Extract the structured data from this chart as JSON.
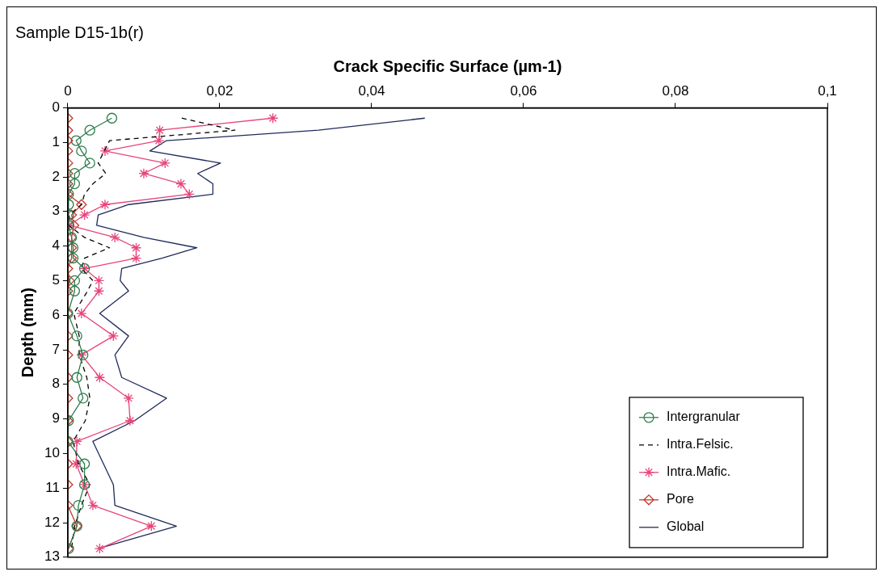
{
  "chart_data": {
    "type": "line",
    "title": "Sample D15-1b(r)",
    "xlabel": "Crack Specific Surface (µm-1)",
    "ylabel": "Depth (mm)",
    "orientation": "horizontal",
    "x": [
      0.3,
      0.65,
      0.95,
      1.25,
      1.6,
      1.9,
      2.2,
      2.5,
      2.8,
      3.1,
      3.4,
      3.75,
      4.05,
      4.35,
      4.65,
      5.0,
      5.3,
      5.95,
      6.6,
      7.15,
      7.8,
      8.4,
      9.05,
      9.65,
      10.3,
      10.9,
      11.5,
      12.1,
      12.75
    ],
    "xlim": [
      0,
      0.1
    ],
    "xticks": [
      0,
      {
        "value": 0.02,
        "label": "0,02"
      },
      {
        "value": 0.04,
        "label": "0,04"
      },
      {
        "value": 0.06,
        "label": "0,06"
      },
      {
        "value": 0.08,
        "label": "0,08"
      },
      {
        "value": 0.1,
        "label": "0,1"
      }
    ],
    "ylim": [
      13,
      0
    ],
    "yticks": [
      0,
      1,
      2,
      3,
      4,
      5,
      6,
      7,
      8,
      9,
      10,
      11,
      12,
      13
    ],
    "grid": false,
    "legend": "bottom right",
    "series": [
      {
        "name": "Intergranular",
        "color": "#2e7d4f",
        "marker": "circle",
        "line_style": "solid",
        "values": [
          0.0058,
          0.0029,
          0.0011,
          0.0018,
          0.0029,
          0.0009,
          0.0009,
          0.0001,
          0.0001,
          0.0001,
          0.0001,
          0.0005,
          0.0007,
          0.0007,
          0.0022,
          0.0009,
          0.0009,
          0,
          0.0012,
          0.002,
          0.0012,
          0.002,
          0.0001,
          0,
          0.0022,
          0.0022,
          0.0014,
          0.0012,
          0.0001
        ]
      },
      {
        "name": "Intra.Felsic.",
        "color": "#000000",
        "marker": "none",
        "line_style": "dashed",
        "values": [
          0.015,
          0.022,
          0.0055,
          0.0048,
          0.004,
          0.005,
          0.0033,
          0.0022,
          0.0018,
          0.0002,
          0.0001,
          0.0022,
          0.0055,
          0.0022,
          0.0018,
          0.0033,
          0.0026,
          0.0008,
          0.0015,
          0.0015,
          0.0025,
          0.0029,
          0.0023,
          0.0007,
          0.0014,
          0.0029,
          0.0018,
          0.0009,
          0.0005
        ]
      },
      {
        "name": "Intra.Mafic.",
        "color": "#e8457a",
        "marker": "cross",
        "line_style": "solid",
        "values": [
          0.027,
          0.0121,
          0.012,
          0.0049,
          0.0128,
          0.01,
          0.0149,
          0.016,
          0.0049,
          0.0022,
          0.0002,
          0.0062,
          0.009,
          0.009,
          0.0022,
          0.0041,
          0.0041,
          0.0018,
          0.006,
          0.0018,
          0.0042,
          0.008,
          0.0082,
          0.0012,
          0.0011,
          0.0022,
          0.0033,
          0.011,
          0.0042
        ]
      },
      {
        "name": "Pore",
        "color": "#c0392b",
        "marker": "diamond",
        "line_style": "solid",
        "values": [
          0,
          0,
          0,
          0,
          0,
          0,
          0,
          0,
          0.0018,
          0.0005,
          0.0008,
          0.0005,
          0.0005,
          0.0005,
          0,
          0.0002,
          0,
          0,
          0,
          0,
          0,
          0,
          0,
          0,
          0,
          0,
          0,
          0.0012,
          0.0001
        ]
      },
      {
        "name": "Global",
        "color": "#1f2a5c",
        "marker": "none",
        "line_style": "solid",
        "values": [
          0.047,
          0.033,
          0.013,
          0.0108,
          0.0201,
          0.0171,
          0.0191,
          0.0191,
          0.008,
          0.004,
          0.0038,
          0.01,
          0.017,
          0.0124,
          0.0071,
          0.0069,
          0.008,
          0.0042,
          0.008,
          0.0062,
          0.0071,
          0.013,
          0.0088,
          0.0033,
          0.0047,
          0.006,
          0.0062,
          0.0143,
          0.004
        ]
      }
    ]
  }
}
